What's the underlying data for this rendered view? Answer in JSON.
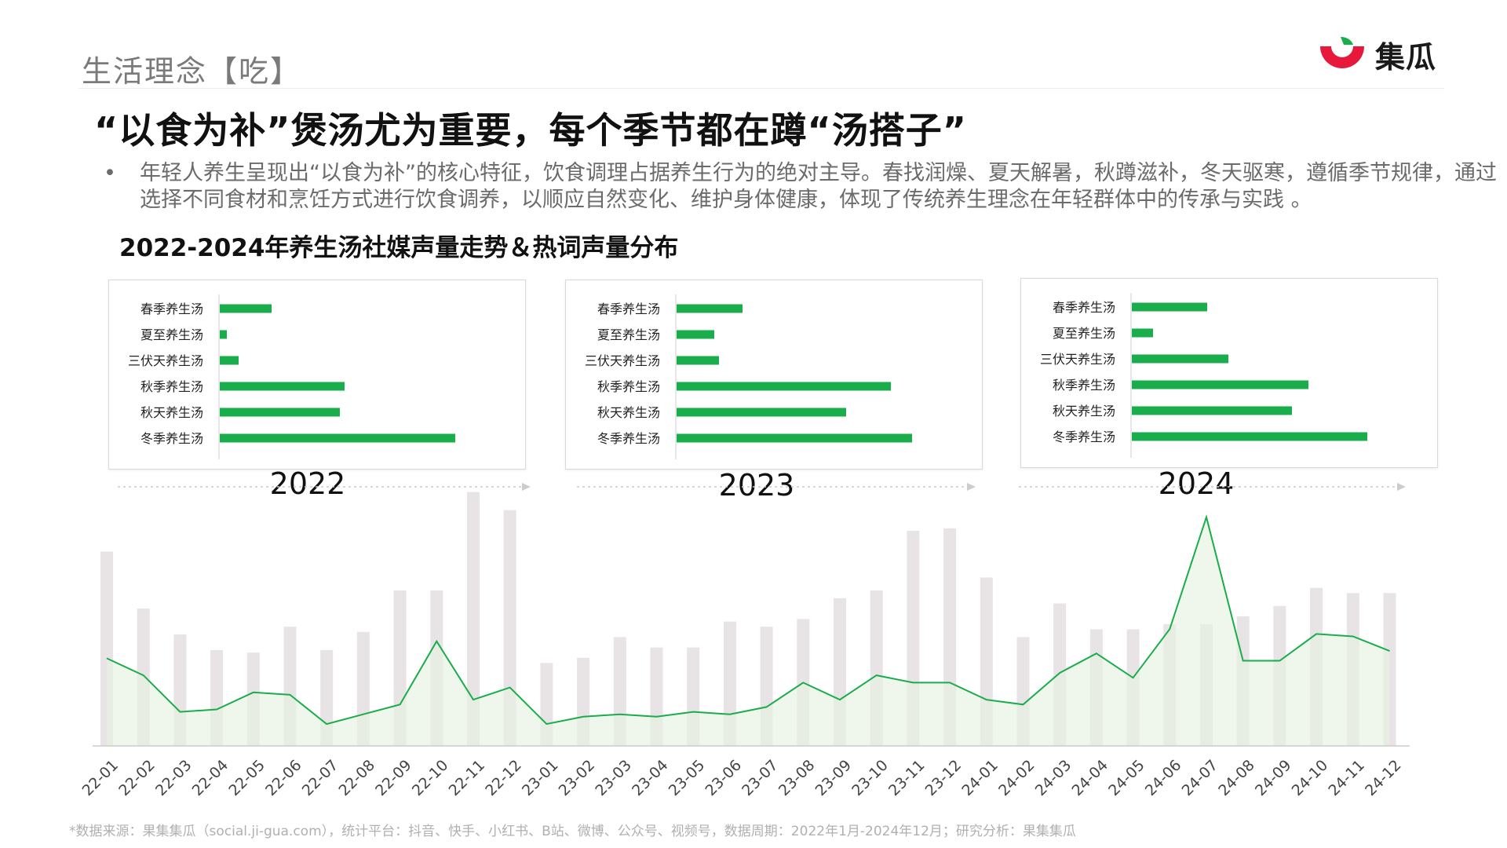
{
  "header": {
    "section_title": "生活理念【吃】",
    "logo_text": "集瓜"
  },
  "headline": "“以食为补”煲汤尤为重要，每个季节都在蹲“汤搭子”",
  "bullet": {
    "dot": "•",
    "text": "年轻人养生呈现出“以食为补”的核心特征，饮食调理占据养生行为的绝对主导。春找润燥、夏天解暑，秋蹲滋补，冬天驱寒，遵循季节规律，通过选择不同食材和烹饪方式进行饮食调养，以顺应自然变化、维护身体健康，体现了传统养生理念在年轻群体中的传承与实践 。"
  },
  "chart_title": "2022-2024年养生汤社媒声量走势＆热词声量分布",
  "colors": {
    "bar_green": "#1aad4b",
    "line_green": "#1aad4b",
    "area_fill": "#e6f3e2",
    "gray_bar": "#e8e3e5",
    "logo_red": "#e8173c",
    "logo_green": "#1aad4b"
  },
  "chart_data": [
    {
      "type": "bar",
      "orientation": "horizontal",
      "title": "2022",
      "categories": [
        "春季养生汤",
        "夏至养生汤",
        "三伏天养生汤",
        "秋季养生汤",
        "秋天养生汤",
        "冬季养生汤"
      ],
      "values": [
        22,
        3,
        8,
        53,
        51,
        100
      ]
    },
    {
      "type": "bar",
      "orientation": "horizontal",
      "title": "2023",
      "categories": [
        "春季养生汤",
        "夏至养生汤",
        "三伏天养生汤",
        "秋季养生汤",
        "秋天养生汤",
        "冬季养生汤"
      ],
      "values": [
        28,
        16,
        18,
        91,
        72,
        100
      ]
    },
    {
      "type": "bar",
      "orientation": "horizontal",
      "title": "2024",
      "categories": [
        "春季养生汤",
        "夏至养生汤",
        "三伏天养生汤",
        "秋季养生汤",
        "秋天养生汤",
        "冬季养生汤"
      ],
      "values": [
        32,
        9,
        41,
        75,
        68,
        100
      ]
    },
    {
      "type": "bar+area",
      "x": [
        "22-01",
        "22-02",
        "22-03",
        "22-04",
        "22-05",
        "22-06",
        "22-07",
        "22-08",
        "22-09",
        "22-10",
        "22-11",
        "22-12",
        "23-01",
        "23-02",
        "23-03",
        "23-04",
        "23-05",
        "23-06",
        "23-07",
        "23-08",
        "23-09",
        "23-10",
        "23-11",
        "23-12",
        "24-01",
        "24-02",
        "24-03",
        "24-04",
        "24-05",
        "24-06",
        "24-07",
        "24-08",
        "24-09",
        "24-10",
        "24-11",
        "24-12"
      ],
      "series": [
        {
          "kind": "bar",
          "values": [
            75,
            53,
            43,
            37,
            36,
            46,
            37,
            44,
            60,
            60,
            98,
            91,
            32,
            34,
            42,
            38,
            38,
            48,
            46,
            49,
            57,
            60,
            83,
            84,
            65,
            42,
            55,
            45,
            45,
            47,
            47,
            50,
            54,
            61,
            59,
            59
          ]
        },
        {
          "kind": "area",
          "values": [
            36,
            29,
            14,
            15,
            22,
            21,
            9,
            13,
            17,
            43,
            19,
            24,
            9,
            12,
            13,
            12,
            14,
            13,
            16,
            26,
            19,
            29,
            26,
            26,
            19,
            17,
            30,
            38,
            28,
            48,
            94,
            35,
            35,
            46,
            45,
            39
          ]
        }
      ],
      "xlabel": "",
      "ylabel": ""
    }
  ],
  "footnote": "*数据来源：果集集瓜（social.ji-gua.com），统计平台：抖音、快手、小红书、B站、微博、公众号、视频号，数据周期：2022年1月-2024年12月；研究分析：果集集瓜"
}
